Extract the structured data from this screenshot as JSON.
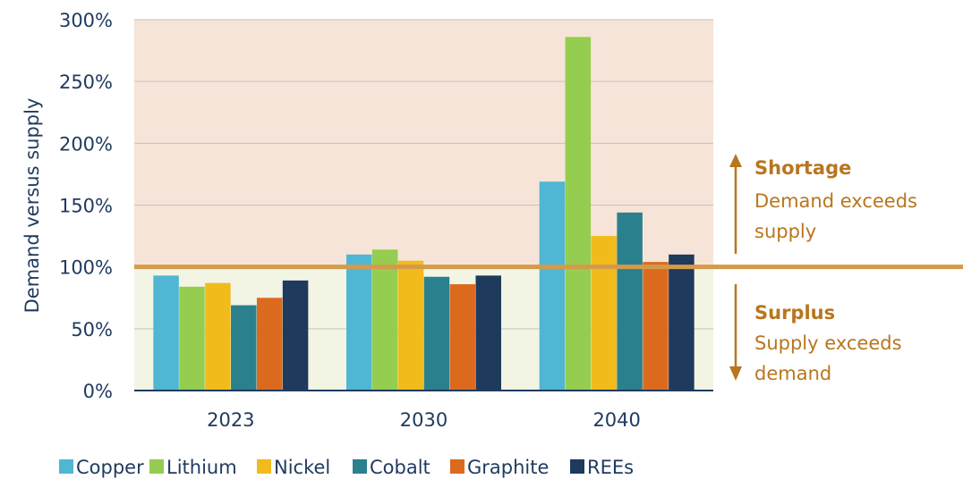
{
  "chart_data": {
    "type": "bar",
    "title": "",
    "xlabel": "",
    "ylabel": "Demand versus supply",
    "categories": [
      "2023",
      "2030",
      "2040"
    ],
    "ylim": [
      0,
      300
    ],
    "yticks": [
      "0%",
      "50%",
      "100%",
      "150%",
      "200%",
      "250%",
      "300%"
    ],
    "reference_line": 100,
    "series": [
      {
        "name": "Copper",
        "color": "#4fb7d4",
        "values": [
          93,
          110,
          169
        ]
      },
      {
        "name": "Lithium",
        "color": "#94cd4f",
        "values": [
          84,
          114,
          286
        ]
      },
      {
        "name": "Nickel",
        "color": "#f2bb1c",
        "values": [
          87,
          105,
          125
        ]
      },
      {
        "name": "Cobalt",
        "color": "#2b808e",
        "values": [
          69,
          92,
          144
        ]
      },
      {
        "name": "Graphite",
        "color": "#dc6a1e",
        "values": [
          75,
          86,
          104
        ]
      },
      {
        "name": "REEs",
        "color": "#1e3a5c",
        "values": [
          89,
          93,
          110
        ]
      }
    ],
    "legend": "bottom",
    "regions": {
      "shortage": {
        "title": "Shortage",
        "text": [
          "Demand exceeds",
          "supply"
        ],
        "color": "#f6e4d9"
      },
      "surplus": {
        "title": "Surplus",
        "text": [
          "Supply exceeds",
          "demand"
        ],
        "color": "#f2f5e4"
      }
    },
    "colors": {
      "reference_line": "#d49a4a",
      "annotation": "#b8761e",
      "text": "#1f3a5f"
    }
  }
}
